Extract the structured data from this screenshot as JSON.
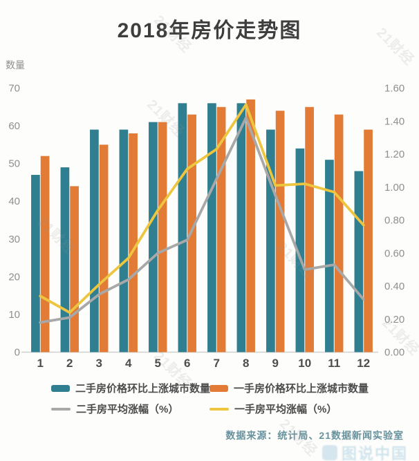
{
  "page": {
    "title": "2018年房价走势图",
    "watermark_text": "21财经",
    "corner_watermark": "图说中国"
  },
  "footer": {
    "source": "数据来源：统计局、21数据新闻实验室"
  },
  "chart_data": {
    "type": "combo",
    "categories": [
      "1",
      "2",
      "3",
      "4",
      "5",
      "6",
      "7",
      "8",
      "9",
      "10",
      "11",
      "12"
    ],
    "left_axis": {
      "title": "数量",
      "min": 0,
      "max": 70,
      "tick_step": 10
    },
    "right_axis": {
      "min": 0.0,
      "max": 1.6,
      "tick_labels": [
        "0.00",
        "0.20",
        "0.40",
        "0.60",
        "0.80",
        "1.00",
        "1.20",
        "1.40",
        "1.60"
      ]
    },
    "grid": false,
    "legend_position": "bottom",
    "series": [
      {
        "name": "二手房价格环比上涨城市数量",
        "type": "bar",
        "axis": "left",
        "color": "#2f7f90",
        "values": [
          47,
          49,
          59,
          59,
          61,
          66,
          66,
          66,
          59,
          54,
          51,
          48
        ]
      },
      {
        "name": "一手房价格环比上涨城市数量",
        "type": "bar",
        "axis": "left",
        "color": "#e17b36",
        "values": [
          52,
          44,
          55,
          58,
          61,
          63,
          65,
          67,
          64,
          65,
          63,
          59
        ]
      },
      {
        "name": "二手房平均涨幅（%）",
        "type": "line",
        "axis": "right",
        "color": "#a8a8a8",
        "values": [
          0.18,
          0.21,
          0.35,
          0.44,
          0.6,
          0.68,
          1.05,
          1.42,
          0.95,
          0.5,
          0.53,
          0.32
        ]
      },
      {
        "name": "一手房平均涨幅（%）",
        "type": "line",
        "axis": "right",
        "color": "#edc53e",
        "values": [
          0.34,
          0.24,
          0.41,
          0.57,
          0.86,
          1.11,
          1.23,
          1.5,
          1.01,
          1.02,
          0.97,
          0.77
        ]
      }
    ]
  }
}
